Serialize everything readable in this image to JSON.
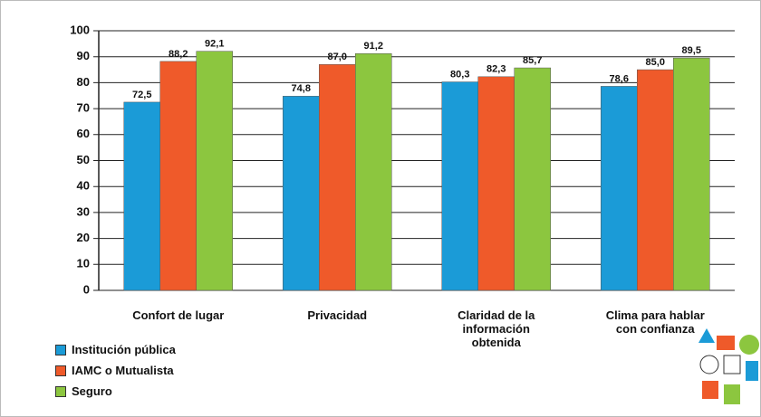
{
  "chart_data": {
    "type": "bar",
    "categories": [
      "Confort de lugar",
      "Privacidad",
      "Claridad de la información obtenida",
      "Clima para hablar con confianza"
    ],
    "series": [
      {
        "name": "Institución pública",
        "color": "#1b9bd7",
        "values": [
          72.5,
          74.8,
          80.3,
          78.6
        ],
        "value_labels": [
          "72,5",
          "74,8",
          "80,3",
          "78,6"
        ]
      },
      {
        "name": "IAMC o Mutualista",
        "color": "#ef5a2a",
        "values": [
          88.2,
          87.0,
          82.3,
          85.0
        ],
        "value_labels": [
          "88,2",
          "87,0",
          "82,3",
          "85,0"
        ]
      },
      {
        "name": "Seguro",
        "color": "#8cc63f",
        "values": [
          92.1,
          91.2,
          85.7,
          89.5
        ],
        "value_labels": [
          "92,1",
          "91,2",
          "85,7",
          "89,5"
        ]
      }
    ],
    "ylim": [
      0,
      100
    ],
    "yticks": [
      0,
      10,
      20,
      30,
      40,
      50,
      60,
      70,
      80,
      90,
      100
    ],
    "grid": true,
    "legend": "bottom-left"
  }
}
